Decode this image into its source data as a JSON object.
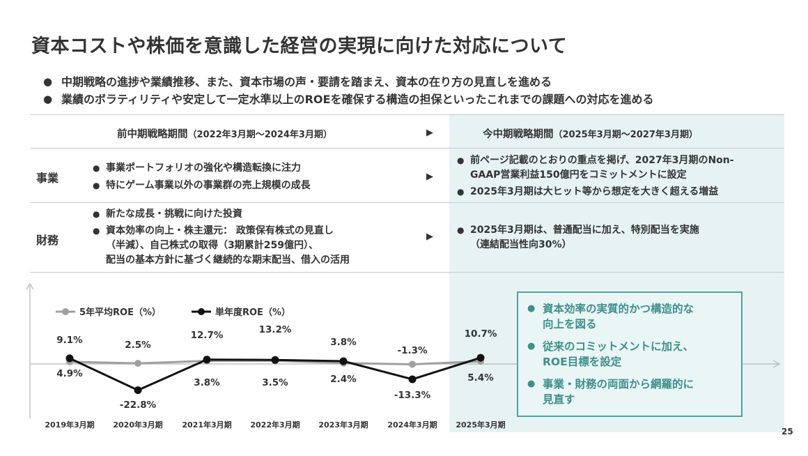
{
  "title": "資本コストや株価を意識した経営の実現に向けた対応について",
  "bullets": [
    "中期戦略の進捗や業績推移、また、資本市場の声・要請を踏まえ、資本の在り方の見直しを進める",
    "業績のボラティリティや安定して一定水準以上のROEを確保する構造の担保といったこれまでの課題への対応を進める"
  ],
  "table": {
    "prev_header": "前中期戦略期間",
    "prev_period": "（2022年3月期～2024年3月期）",
    "curr_header": "今中期戦略期間",
    "curr_period": "（2025年3月期～2027年3月期）",
    "arrow": "▶",
    "row1": {
      "label": "事業",
      "prev": [
        "事業ポートフォリオの強化や構造転換に注力",
        "特にゲーム事業以外の事業群の売上規模の成長"
      ],
      "curr": [
        "前ページ記載のとおりの重点を掲げ、2027年3月期のNon-",
        "GAAP営業利益150億円をコミットメントに設定",
        "2025年3月期は大ヒット等から想定を大きく超える増益"
      ]
    },
    "row2": {
      "label": "財務",
      "prev": [
        "新たな成長・挑戦に向けた投資",
        "資本効率の向上・株主還元： 政策保有株式の見直し",
        "（半減）、自己株式の取得（3期累計259億円）、",
        "配当の基本方針に基づく継続的な期末配当、借入の活用"
      ],
      "curr": [
        "2025年3月期は、普通配当に加え、特別配当を実施",
        "（連結配当性向30%）"
      ]
    }
  },
  "chart_data": {
    "type": "line",
    "categories": [
      "2019年3月期",
      "2020年3月期",
      "2021年3月期",
      "2022年3月期",
      "2023年3月期",
      "2024年3月期",
      "2025年3月期"
    ],
    "series": [
      {
        "name": "5年平均ROE（%）",
        "values": [
          9.1,
          2.5,
          12.7,
          13.2,
          3.8,
          -1.3,
          10.7
        ],
        "color": "#a0a0a0"
      },
      {
        "name": "単年度ROE（%）",
        "values": [
          4.9,
          -22.8,
          3.8,
          3.5,
          2.4,
          -13.3,
          5.4
        ],
        "color": "#111111"
      }
    ],
    "avg_labels": [
      "9.1%",
      "2.5%",
      "12.7%",
      "13.2%",
      "3.8%",
      "-1.3%",
      "10.7%"
    ],
    "single_labels": [
      "4.9%",
      "-22.8%",
      "3.8%",
      "3.5%",
      "2.4%",
      "-13.3%",
      "5.4%"
    ]
  },
  "callout": {
    "items": [
      [
        "資本効率の実質的かつ構造的な",
        "向上を図る"
      ],
      [
        "従来のコミットメントに加え、",
        "ROE目標を設定"
      ],
      [
        "事業・財務の両面から網羅的に",
        "見直す"
      ]
    ],
    "color": "#3d8f8c"
  },
  "page_number": "25"
}
